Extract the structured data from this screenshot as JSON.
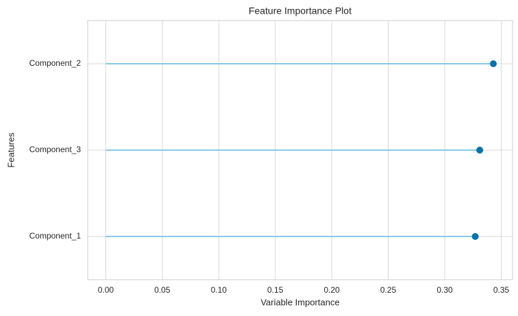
{
  "chart_data": {
    "type": "lollipop",
    "title": "Feature Importance Plot",
    "x_label": "Variable Importance",
    "y_label": "Features",
    "categories": [
      "Component_2",
      "Component_3",
      "Component_1"
    ],
    "values": [
      0.343,
      0.331,
      0.327
    ],
    "stem_color": "#86c9e8",
    "color": "#0a72a8",
    "xlim": [
      -0.016,
      0.36
    ],
    "xticks": [
      {
        "value": 0,
        "label": "0.00"
      },
      {
        "value": 0.05,
        "label": "0.05"
      },
      {
        "value": 0.1,
        "label": "0.10"
      },
      {
        "value": 0.15,
        "label": "0.15"
      },
      {
        "value": 0.2,
        "label": "0.20"
      },
      {
        "value": 0.25,
        "label": "0.25"
      },
      {
        "value": 0.3,
        "label": "0.30"
      },
      {
        "value": 0.35,
        "label": "0.35"
      }
    ],
    "grid": true
  }
}
